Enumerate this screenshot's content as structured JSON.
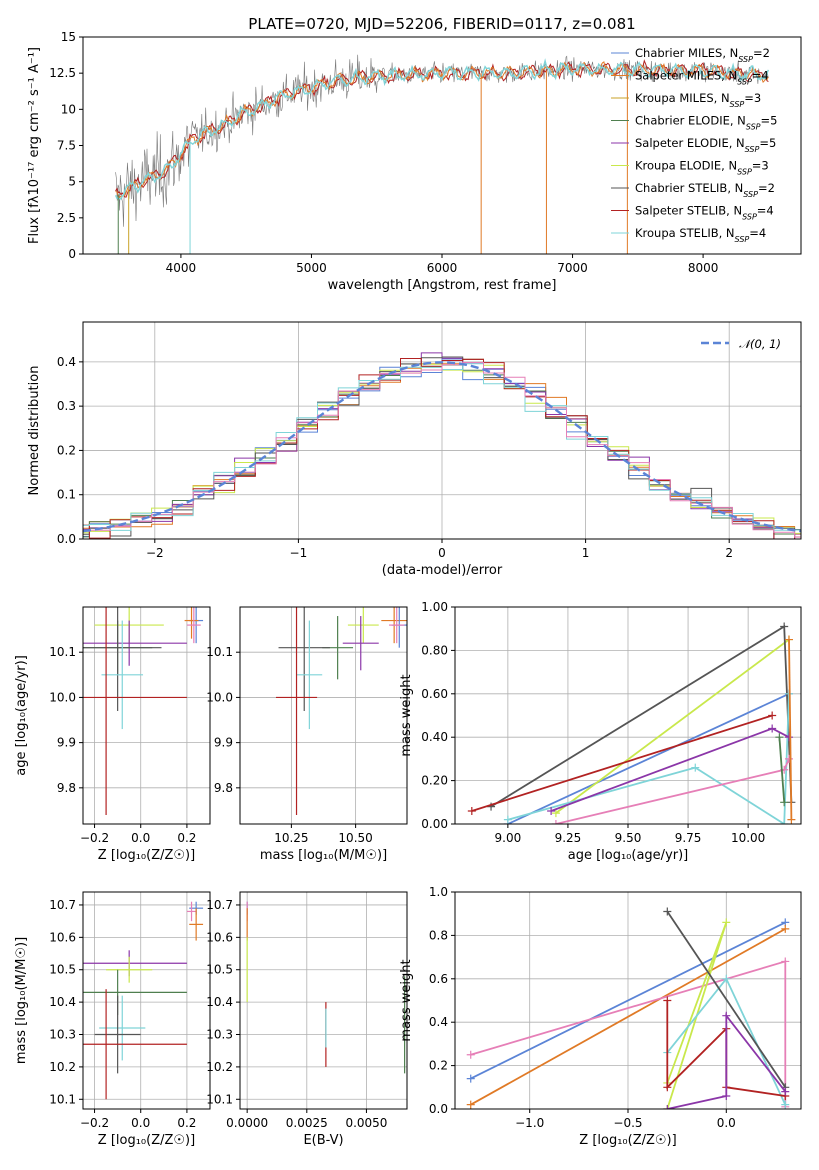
{
  "colors": {
    "series": [
      "#5b84d6",
      "#e07a26",
      "#c9a227",
      "#4f7f4f",
      "#8b36a8",
      "#c9e84c",
      "#555555",
      "#b22222",
      "#7fd4d8",
      "#e67fb7"
    ]
  },
  "chart_data": [
    {
      "type": "line",
      "title": "PLATE=0720, MJD=52206, FIBERID=0117, z=0.081",
      "xlabel": "wavelength [Angstrom, rest frame]",
      "ylabel": "Flux [fλ10⁻¹⁷ erg cm⁻² s⁻¹ A⁻¹]",
      "xlim": [
        3250,
        8750
      ],
      "ylim": [
        0,
        15
      ],
      "xticks": [
        4000,
        5000,
        6000,
        7000,
        8000
      ],
      "yticks": [
        0.0,
        2.5,
        5.0,
        7.5,
        10.0,
        12.5,
        15.0
      ],
      "grid": false,
      "legend": "upper-right",
      "legend_entries": [
        "Chabrier MILES, N_SSP=2",
        "Salpeter MILES, N_SSP=4",
        "Kroupa MILES, N_SSP=3",
        "Chabrier ELODIE, N_SSP=5",
        "Salpeter ELODIE, N_SSP=5",
        "Kroupa ELODIE, N_SSP=3",
        "Chabrier STELIB, N_SSP=2",
        "Salpeter STELIB, N_SSP=4",
        "Kroupa STELIB, N_SSP=4"
      ],
      "continuum": {
        "x": [
          3500,
          3700,
          3900,
          4000,
          4100,
          4300,
          4500,
          4800,
          5000,
          5200,
          5500,
          5800,
          6000,
          6500,
          7000,
          7500,
          8000,
          8500
        ],
        "y": [
          4.0,
          5.0,
          5.8,
          7.0,
          8.0,
          8.8,
          9.8,
          11.0,
          11.5,
          12.0,
          12.3,
          12.4,
          12.5,
          12.5,
          12.8,
          12.7,
          12.7,
          12.3
        ]
      }
    },
    {
      "type": "step",
      "xlabel": "(data-model)/error",
      "ylabel": "Normed distribution",
      "xlim": [
        -2.5,
        2.5
      ],
      "ylim": [
        0,
        0.49
      ],
      "xticks": [
        -2,
        -1,
        0,
        1,
        2
      ],
      "yticks": [
        0.0,
        0.1,
        0.2,
        0.3,
        0.4
      ],
      "grid": true,
      "legend": "upper-right",
      "legend_entries": [
        "𝒩(0, 1)"
      ],
      "reference_curve": "N(0,1)"
    },
    {
      "type": "errorbar",
      "xlabel": "Z [log₁₀(Z/Z☉)]",
      "ylabel": "age  [log₁₀(age/yr)]",
      "xlim": [
        -0.25,
        0.3
      ],
      "ylim": [
        9.72,
        10.2
      ],
      "xticks": [
        -0.2,
        0.0,
        0.2
      ],
      "yticks": [
        9.8,
        9.9,
        10.0,
        10.1
      ],
      "grid": true,
      "points": [
        {
          "x": 0.24,
          "y": 10.17,
          "xerr": 0.03,
          "yerr": 0.05,
          "c": 0
        },
        {
          "x": 0.22,
          "y": 10.17,
          "xerr": 0.03,
          "yerr": 0.04,
          "c": 1
        },
        {
          "x": 0.23,
          "y": 10.16,
          "xerr": 0.03,
          "yerr": 0.04,
          "c": 9
        },
        {
          "x": -0.05,
          "y": 10.16,
          "xerr": 0.15,
          "yerr": 0.04,
          "c": 5
        },
        {
          "x": -0.05,
          "y": 10.12,
          "xerr": 0.25,
          "yerr": 0.05,
          "c": 4
        },
        {
          "x": -0.1,
          "y": 10.11,
          "xerr": 0.15,
          "yerr": 0.06,
          "c": 3
        },
        {
          "x": -0.1,
          "y": 10.11,
          "xerr": 0.19,
          "yerr": 0.14,
          "c": 6
        },
        {
          "x": -0.08,
          "y": 10.05,
          "xerr": 0.09,
          "yerr": 0.12,
          "c": 8
        },
        {
          "x": -0.15,
          "y": 10.0,
          "xerr": 0.35,
          "yerr": 0.26,
          "c": 7
        }
      ]
    },
    {
      "type": "errorbar",
      "xlabel": "mass [log₁₀(M/M☉)]",
      "ylabel": "",
      "xlim": [
        10.05,
        10.7
      ],
      "ylim": [
        9.72,
        10.2
      ],
      "xticks": [
        10.25,
        10.5
      ],
      "yticks": [
        9.8,
        9.9,
        10.0,
        10.1
      ],
      "grid": true,
      "points": [
        {
          "x": 10.65,
          "y": 10.17,
          "xerr": 0.05,
          "yerr": 0.05,
          "c": 1
        },
        {
          "x": 10.67,
          "y": 10.16,
          "xerr": 0.03,
          "yerr": 0.05,
          "c": 0
        },
        {
          "x": 10.66,
          "y": 10.16,
          "xerr": 0.03,
          "yerr": 0.04,
          "c": 9
        },
        {
          "x": 10.53,
          "y": 10.16,
          "xerr": 0.06,
          "yerr": 0.04,
          "c": 5
        },
        {
          "x": 10.52,
          "y": 10.12,
          "xerr": 0.07,
          "yerr": 0.06,
          "c": 4
        },
        {
          "x": 10.43,
          "y": 10.11,
          "xerr": 0.06,
          "yerr": 0.07,
          "c": 3
        },
        {
          "x": 10.3,
          "y": 10.11,
          "xerr": 0.1,
          "yerr": 0.14,
          "c": 6
        },
        {
          "x": 10.32,
          "y": 10.05,
          "xerr": 0.05,
          "yerr": 0.12,
          "c": 8
        },
        {
          "x": 10.27,
          "y": 10.0,
          "xerr": 0.08,
          "yerr": 0.26,
          "c": 7
        }
      ]
    },
    {
      "type": "line",
      "xlabel": "age  [log₁₀(age/yr)]",
      "ylabel": "mass weight",
      "xlim": [
        8.78,
        10.22
      ],
      "ylim": [
        0,
        1
      ],
      "xticks": [
        9.0,
        9.25,
        9.5,
        9.75,
        10.0
      ],
      "yticks": [
        0.0,
        0.2,
        0.4,
        0.6,
        0.8,
        1.0
      ],
      "grid": true,
      "series": [
        {
          "x": [
            9.0,
            10.17
          ],
          "y": [
            0.0,
            0.6
          ],
          "c": 0
        },
        {
          "x": [
            9.2,
            10.17
          ],
          "y": [
            0.05,
            0.85
          ],
          "c": 5
        },
        {
          "x": [
            8.93,
            10.15,
            10.18
          ],
          "y": [
            0.08,
            0.91,
            0.1
          ],
          "c": 6
        },
        {
          "x": [
            8.85,
            10.1
          ],
          "y": [
            0.06,
            0.5
          ],
          "c": 7
        },
        {
          "x": [
            9.0,
            9.78,
            10.15,
            10.17
          ],
          "y": [
            0.02,
            0.26,
            0.0,
            0.6
          ],
          "c": 8
        },
        {
          "x": [
            9.18,
            10.1,
            10.17
          ],
          "y": [
            0.06,
            0.44,
            0.4
          ],
          "c": 4
        },
        {
          "x": [
            9.2,
            10.15,
            10.17
          ],
          "y": [
            0.0,
            0.25,
            0.3
          ],
          "c": 9
        },
        {
          "x": [
            10.17,
            10.18
          ],
          "y": [
            0.85,
            0.02
          ],
          "c": 1
        },
        {
          "x": [
            10.13,
            10.15
          ],
          "y": [
            0.4,
            0.1
          ],
          "c": 3
        }
      ]
    },
    {
      "type": "errorbar",
      "xlabel": "Z [log₁₀(Z/Z☉)]",
      "ylabel": "mass [log₁₀(M/M☉)]",
      "xlim": [
        -0.25,
        0.3
      ],
      "ylim": [
        10.07,
        10.74
      ],
      "xticks": [
        -0.2,
        0.0,
        0.2
      ],
      "yticks": [
        10.1,
        10.2,
        10.3,
        10.4,
        10.5,
        10.6,
        10.7
      ],
      "grid": true,
      "points": [
        {
          "x": 0.24,
          "y": 10.69,
          "xerr": 0.03,
          "yerr": 0.02,
          "c": 0
        },
        {
          "x": 0.22,
          "y": 10.68,
          "xerr": 0.02,
          "yerr": 0.03,
          "c": 9
        },
        {
          "x": 0.24,
          "y": 10.64,
          "xerr": 0.03,
          "yerr": 0.05,
          "c": 1
        },
        {
          "x": -0.05,
          "y": 10.52,
          "xerr": 0.25,
          "yerr": 0.04,
          "c": 4
        },
        {
          "x": -0.05,
          "y": 10.5,
          "xerr": 0.1,
          "yerr": 0.04,
          "c": 5
        },
        {
          "x": -0.1,
          "y": 10.43,
          "xerr": 0.3,
          "yerr": 0.07,
          "c": 3
        },
        {
          "x": -0.08,
          "y": 10.32,
          "xerr": 0.1,
          "yerr": 0.1,
          "c": 8
        },
        {
          "x": -0.1,
          "y": 10.3,
          "xerr": 0.1,
          "yerr": 0.12,
          "c": 6
        },
        {
          "x": -0.15,
          "y": 10.27,
          "xerr": 0.35,
          "yerr": 0.17,
          "c": 7
        }
      ]
    },
    {
      "type": "errorbar",
      "xlabel": "E(B-V)",
      "ylabel": "",
      "xlim": [
        -0.0003,
        0.0067
      ],
      "ylim": [
        10.07,
        10.74
      ],
      "xticks": [
        0.0,
        0.0025,
        0.005
      ],
      "yticks": [
        10.1,
        10.2,
        10.3,
        10.4,
        10.5,
        10.6,
        10.7
      ],
      "grid": true,
      "points": [
        {
          "x": 0.0,
          "y": 10.69,
          "xerr": 0,
          "yerr": 0.02,
          "c": 0
        },
        {
          "x": 0.0,
          "y": 10.68,
          "xerr": 0,
          "yerr": 0.03,
          "c": 9
        },
        {
          "x": 0.0,
          "y": 10.64,
          "xerr": 0,
          "yerr": 0.05,
          "c": 1
        },
        {
          "x": 0.0,
          "y": 10.5,
          "xerr": 0,
          "yerr": 0.1,
          "c": 5
        },
        {
          "x": 0.0033,
          "y": 10.3,
          "xerr": 0,
          "yerr": 0.1,
          "c": 7
        },
        {
          "x": 0.0033,
          "y": 10.32,
          "xerr": 0,
          "yerr": 0.06,
          "c": 8
        },
        {
          "x": 0.0066,
          "y": 10.33,
          "xerr": 0,
          "yerr": 0.15,
          "c": 3
        }
      ]
    },
    {
      "type": "line",
      "xlabel": "Z [log₁₀(Z/Z☉)]",
      "ylabel": "mass weight",
      "xlim": [
        -1.38,
        0.38
      ],
      "ylim": [
        0,
        1
      ],
      "xticks": [
        -1.0,
        -0.5,
        0.0
      ],
      "yticks": [
        0.0,
        0.2,
        0.4,
        0.6,
        0.8,
        1.0
      ],
      "grid": true,
      "series": [
        {
          "x": [
            -1.3,
            0.3
          ],
          "y": [
            0.14,
            0.86
          ],
          "c": 0
        },
        {
          "x": [
            -1.3,
            0.3
          ],
          "y": [
            0.02,
            0.83
          ],
          "c": 1
        },
        {
          "x": [
            -1.3,
            0.3,
            0.3
          ],
          "y": [
            0.25,
            0.68,
            0.01
          ],
          "c": 9
        },
        {
          "x": [
            -0.3,
            0.0,
            -0.3
          ],
          "y": [
            0.12,
            0.86,
            0.0
          ],
          "c": 5
        },
        {
          "x": [
            -0.3,
            0.0,
            0.3
          ],
          "y": [
            0.26,
            0.6,
            0.02
          ],
          "c": 8
        },
        {
          "x": [
            -0.3,
            0.3
          ],
          "y": [
            0.91,
            0.1
          ],
          "c": 6
        },
        {
          "x": [
            -0.3,
            -0.3,
            0.0,
            0.0,
            0.3
          ],
          "y": [
            0.5,
            0.1,
            0.37,
            0.1,
            0.06
          ],
          "c": 7
        },
        {
          "x": [
            -0.3,
            0.0,
            0.0,
            0.3
          ],
          "y": [
            0.0,
            0.06,
            0.43,
            0.08
          ],
          "c": 4
        }
      ]
    }
  ]
}
